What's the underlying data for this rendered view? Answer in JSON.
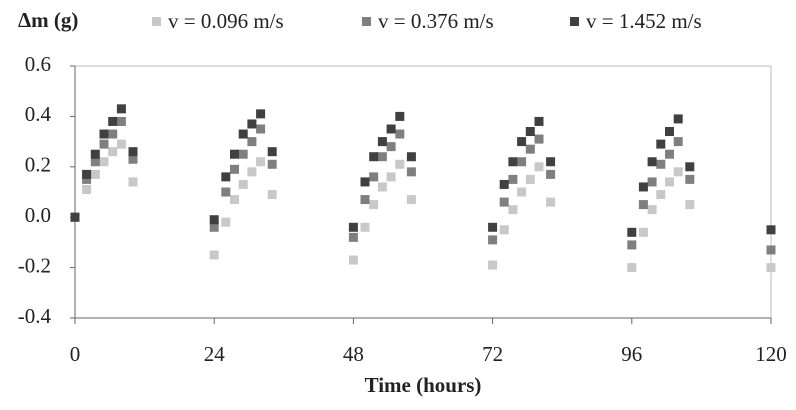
{
  "chart_data": {
    "type": "scatter",
    "title": "Δm (g)",
    "x_label": "Time (hours)",
    "x": [
      0,
      2,
      3.5,
      5,
      6.5,
      8,
      10,
      24,
      26,
      27.5,
      29,
      30.5,
      32,
      34,
      48,
      50,
      51.5,
      53,
      54.5,
      56,
      58,
      72,
      74,
      75.5,
      77,
      78.5,
      80,
      82,
      96,
      98,
      99.5,
      101,
      102.5,
      104,
      106,
      120
    ],
    "series": [
      {
        "name": "v = 0.096 m/s",
        "color": "#c8c8c8",
        "values": [
          0,
          0.11,
          0.17,
          0.22,
          0.26,
          0.29,
          0.14,
          -0.15,
          -0.02,
          0.07,
          0.13,
          0.18,
          0.22,
          0.09,
          -0.17,
          -0.04,
          0.05,
          0.12,
          0.16,
          0.21,
          0.07,
          -0.19,
          -0.05,
          0.03,
          0.1,
          0.15,
          0.2,
          0.06,
          -0.2,
          -0.06,
          0.03,
          0.09,
          0.14,
          0.18,
          0.05,
          -0.2
        ]
      },
      {
        "name": "v = 0.376 m/s",
        "color": "#7f7f7f",
        "values": [
          0,
          0.15,
          0.22,
          0.29,
          0.33,
          0.38,
          0.23,
          -0.04,
          0.1,
          0.19,
          0.25,
          0.3,
          0.35,
          0.21,
          -0.08,
          0.07,
          0.16,
          0.24,
          0.28,
          0.33,
          0.18,
          -0.09,
          0.06,
          0.15,
          0.22,
          0.27,
          0.31,
          0.17,
          -0.11,
          0.05,
          0.14,
          0.21,
          0.25,
          0.3,
          0.15,
          -0.13
        ]
      },
      {
        "name": "v = 1.452 m/s",
        "color": "#404040",
        "values": [
          0,
          0.17,
          0.25,
          0.33,
          0.38,
          0.43,
          0.26,
          -0.01,
          0.16,
          0.25,
          0.33,
          0.37,
          0.41,
          0.26,
          -0.04,
          0.14,
          0.24,
          0.3,
          0.35,
          0.4,
          0.24,
          -0.04,
          0.13,
          0.22,
          0.3,
          0.34,
          0.38,
          0.22,
          -0.06,
          0.12,
          0.22,
          0.29,
          0.34,
          0.39,
          0.2,
          -0.05
        ]
      }
    ],
    "xlim": [
      0,
      120
    ],
    "xticks": [
      0,
      24,
      48,
      72,
      96,
      120
    ],
    "ylim": [
      -0.4,
      0.6
    ],
    "yticks": [
      0.6,
      0.4,
      0.2,
      {
        "value": 0,
        "label": "0.0"
      },
      -0.2,
      -0.4
    ]
  }
}
